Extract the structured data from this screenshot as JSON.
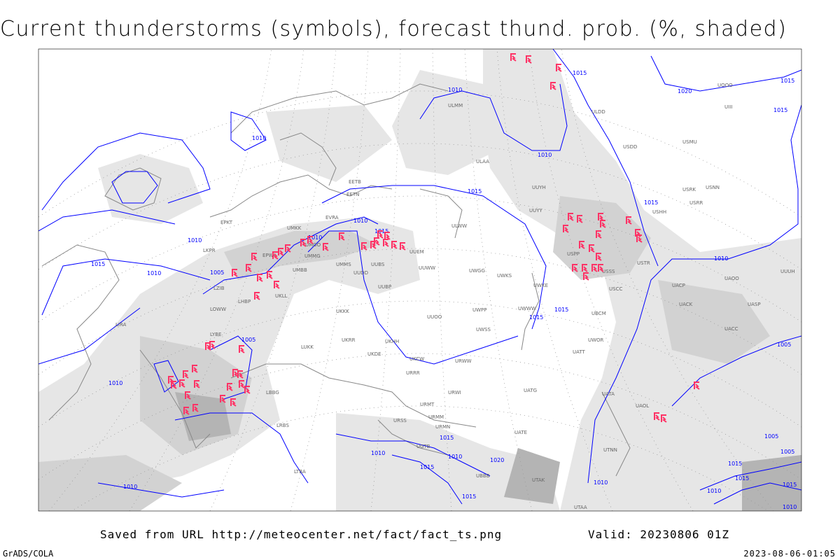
{
  "title": "Current thunderstorms (symbols), forecast thund. prob. (%, shaded)",
  "footer": {
    "saved_from": "Saved from URL http://meteocenter.net/fact/fact_ts.png",
    "valid": "Valid: 20230806 01Z",
    "software": "GrADS/COLA",
    "timestamp": "2023-08-06-01:05"
  },
  "colors": {
    "isobars": "#0000ff",
    "thunderstorm_symbols": "#ff3366",
    "coastlines": "#888888",
    "shading_light": "#e6e6e6",
    "shading_mid": "#d2d2d2",
    "shading_dark": "#b4b4b4"
  },
  "symbol_icon": "thunderstorm-icon",
  "isobar_labels": [
    "1010",
    "1015",
    "1010",
    "1010",
    "1015",
    "1010",
    "1015",
    "1010",
    "1005",
    "1010",
    "1010",
    "1015",
    "1015",
    "1020",
    "1015",
    "1010",
    "1015",
    "1015",
    "1015",
    "1010",
    "1005",
    "1010",
    "1015",
    "1005",
    "1005",
    "1010",
    "1010",
    "1015",
    "1015",
    "1020",
    "1010",
    "1015",
    "1015",
    "1005",
    "1010",
    "1015",
    "1010"
  ],
  "stations": [
    "ULMM",
    "ULAA",
    "UUYH",
    "UUYY",
    "ULWW",
    "UUEM",
    "UUWW",
    "UWGG",
    "UWKS",
    "UWKE",
    "UWWW",
    "UWSS",
    "UWPP",
    "UUOO",
    "UKHH",
    "UKDE",
    "UKCW",
    "URWW",
    "URRR",
    "URWI",
    "URMT",
    "URMM",
    "URMN",
    "URSS",
    "UGTB",
    "UBBB",
    "UTAK",
    "UTAA",
    "UTNN",
    "UATE",
    "UATG",
    "UACC",
    "UASP",
    "UACK",
    "UACP",
    "UAOO",
    "USTR",
    "USSS",
    "USPP",
    "UUUH",
    "USCC",
    "UBCM",
    "UATT",
    "UWOR",
    "UAOL",
    "UATA",
    "USRR",
    "USRK",
    "USNN",
    "USHH",
    "USMU",
    "USDD",
    "ULDD",
    "UOOO",
    "UIII",
    "EVRA",
    "EETN",
    "EETB",
    "UMKK",
    "UMMG",
    "UMMS",
    "UMBB",
    "UKLL",
    "UKKK",
    "UKRR",
    "LHBP",
    "LOWW",
    "LKPR",
    "LZIB",
    "LYBE",
    "LUKK",
    "LBBG",
    "LRBS",
    "LTBA",
    "LIRA",
    "EPWA",
    "UMOO",
    "UUDD",
    "UUBP",
    "UUBS",
    "EPKT"
  ]
}
